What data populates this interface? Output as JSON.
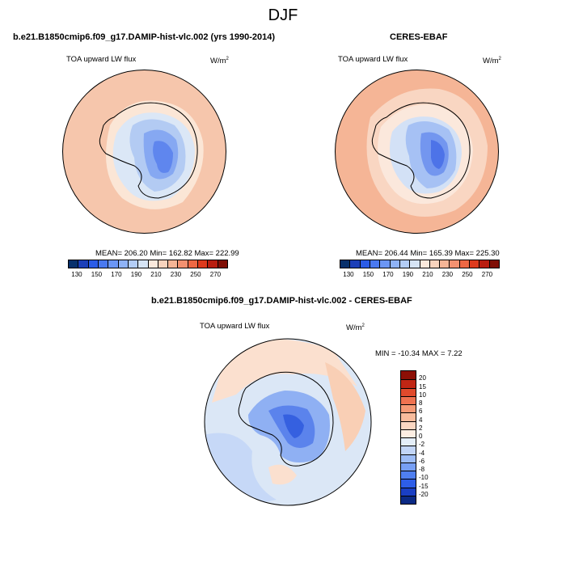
{
  "title": "DJF",
  "panels": {
    "model": {
      "title": "b.e21.B1850cmip6.f09_g17.DAMIP-hist-vlc.002 (yrs 1990-2014)",
      "variable": "TOA upward LW flux",
      "units": "W/m",
      "units_sup": "2",
      "stats": "MEAN= 206.20  Min= 162.82  Max= 222.99"
    },
    "obs": {
      "title": "CERES-EBAF",
      "variable": "TOA upward LW flux",
      "units": "W/m",
      "units_sup": "2",
      "stats": "MEAN= 206.44  Min= 165.39  Max= 225.30"
    },
    "diff": {
      "title": "b.e21.B1850cmip6.f09_g17.DAMIP-hist-vlc.002 - CERES-EBAF",
      "variable": "TOA upward LW flux",
      "units": "W/m",
      "units_sup": "2",
      "stats": "MIN = -10.34 MAX =   7.22"
    }
  },
  "colorbar_abs": {
    "colors": [
      "#08306b",
      "#1c3fb8",
      "#2b5ce6",
      "#4a79f0",
      "#6b96f5",
      "#8fb3f7",
      "#b3cdf6",
      "#d6e4f5",
      "#fbe9dc",
      "#f8d3bd",
      "#f5b596",
      "#f39170",
      "#ee6844",
      "#dd3a1d",
      "#b81d0f",
      "#7f0e06"
    ],
    "labels": [
      "130",
      "150",
      "170",
      "190",
      "210",
      "230",
      "250",
      "270"
    ]
  },
  "colorbar_diff": {
    "colors": [
      "#0b2a85",
      "#1a3fc4",
      "#2e5ee8",
      "#4f7ff0",
      "#779ff4",
      "#9dbcf6",
      "#c2d5f7",
      "#e4eef9",
      "#fdeee3",
      "#fbd7c2",
      "#f8bc9d",
      "#f59a76",
      "#ef7250",
      "#e04a2c",
      "#c02614",
      "#8c0f06"
    ],
    "labels": [
      "20",
      "15",
      "10",
      "8",
      "6",
      "4",
      "2",
      "0",
      "-2",
      "-4",
      "-6",
      "-8",
      "-10",
      "-15",
      "-20"
    ]
  }
}
